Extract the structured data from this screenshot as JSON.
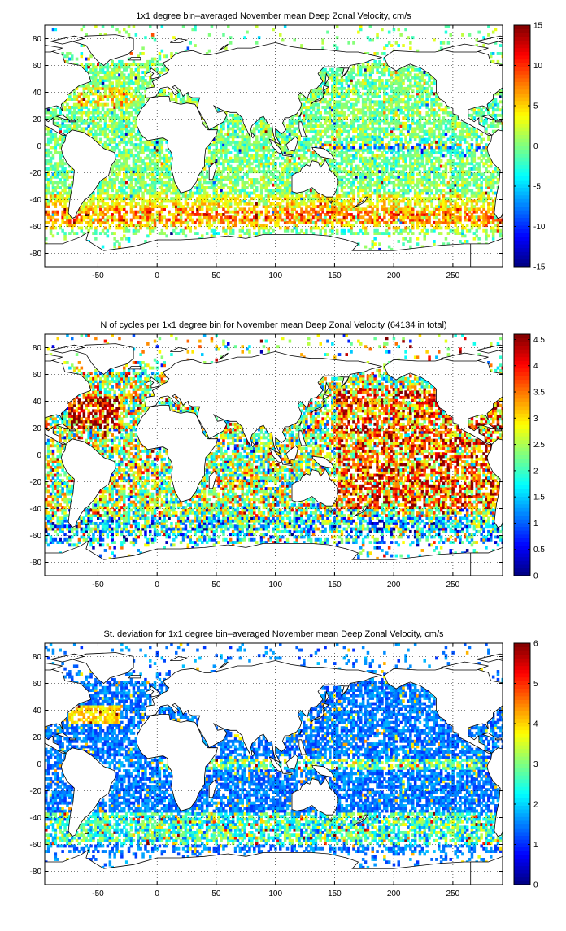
{
  "chart_data": [
    {
      "type": "heatmap",
      "title": "1x1 degree bin–averaged November mean Deep Zonal Velocity, cm/s",
      "xlabel": "",
      "ylabel": "",
      "xlim": [
        -95,
        292
      ],
      "ylim": [
        -90,
        90
      ],
      "x_ticks": [
        -50,
        0,
        50,
        100,
        150,
        200,
        250
      ],
      "y_ticks": [
        80,
        60,
        40,
        20,
        0,
        -20,
        -40,
        -60,
        -80
      ],
      "colorbar": {
        "range": [
          -15,
          15
        ],
        "ticks": [
          15,
          10,
          5,
          0,
          -5,
          -10,
          -15
        ]
      },
      "colormap": "jet",
      "grid": true,
      "value_field": "velocity"
    },
    {
      "type": "heatmap",
      "title": "N of cycles per 1x1 degree bin for November mean Deep Zonal Velocity (64134 in total)",
      "xlabel": "",
      "ylabel": "",
      "xlim": [
        -95,
        292
      ],
      "ylim": [
        -90,
        90
      ],
      "x_ticks": [
        -50,
        0,
        50,
        100,
        150,
        200,
        250
      ],
      "y_ticks": [
        80,
        60,
        40,
        20,
        0,
        -20,
        -40,
        -60,
        -80
      ],
      "colorbar": {
        "range": [
          0,
          4.6
        ],
        "ticks": [
          4.5,
          4,
          3.5,
          3,
          2.5,
          2,
          1.5,
          1,
          0.5,
          0
        ]
      },
      "colormap": "jet",
      "grid": true,
      "value_field": "count"
    },
    {
      "type": "heatmap",
      "title": "St. deviation for 1x1 degree bin–averaged November mean Deep Zonal Velocity, cm/s",
      "xlabel": "",
      "ylabel": "",
      "xlim": [
        -95,
        292
      ],
      "ylim": [
        -90,
        90
      ],
      "x_ticks": [
        -50,
        0,
        50,
        100,
        150,
        200,
        250
      ],
      "y_ticks": [
        80,
        60,
        40,
        20,
        0,
        -20,
        -40,
        -60,
        -80
      ],
      "colorbar": {
        "range": [
          0,
          6
        ],
        "ticks": [
          6,
          5,
          4,
          3,
          2,
          1,
          0
        ]
      },
      "colormap": "jet",
      "grid": true,
      "value_field": "std"
    }
  ]
}
